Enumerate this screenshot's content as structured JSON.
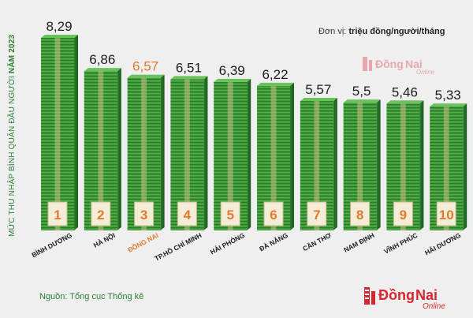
{
  "chart_data": {
    "type": "bar",
    "title": "MỨC THU NHẬP BÌNH QUÂN ĐẦU NGƯỜI NĂM 2023",
    "title_parts": [
      "MỨC THU NHẬP BÌNH QUÂN ĐẦU NGƯỜI ",
      "NĂM 2023"
    ],
    "unit_label": "Đơn vị: ",
    "unit_value": "triệu đồng/người/tháng",
    "categories": [
      "BÌNH DƯƠNG",
      "HÀ NỘI",
      "ĐỒNG NAI",
      "TP.HỒ CHÍ MINH",
      "HẢI PHÒNG",
      "ĐÀ NẴNG",
      "CẦN THƠ",
      "NAM ĐỊNH",
      "VĨNH PHÚC",
      "HẢI DƯƠNG"
    ],
    "values": [
      8.29,
      6.86,
      6.57,
      6.51,
      6.39,
      6.22,
      5.57,
      5.5,
      5.46,
      5.33
    ],
    "value_labels": [
      "8,29",
      "6,86",
      "6,57",
      "6,51",
      "6,39",
      "6,22",
      "5,57",
      "5,5",
      "5,46",
      "5,33"
    ],
    "ranks": [
      "1",
      "2",
      "3",
      "4",
      "5",
      "6",
      "7",
      "8",
      "9",
      "10"
    ],
    "highlight_index": 2,
    "ylim": [
      0,
      8.29
    ],
    "grid": false,
    "legend": "none",
    "colors": {
      "bar": "#3f9a3a",
      "bar_dark": "#1f6a22",
      "bar_light": "#6cc25a",
      "value_text": "#1c1c1c",
      "highlight_text": "#e07a2e",
      "rank_text": "#e07a2e",
      "category_text": "#1c1c1c",
      "highlight_category": "#e07a2e"
    }
  },
  "source_text": "Nguồn: Tổng cục Thống kê",
  "brand": {
    "name_part1": "Đồng",
    "name_part2": "Nai",
    "sub": "Online",
    "color_red": "#d8262e"
  }
}
